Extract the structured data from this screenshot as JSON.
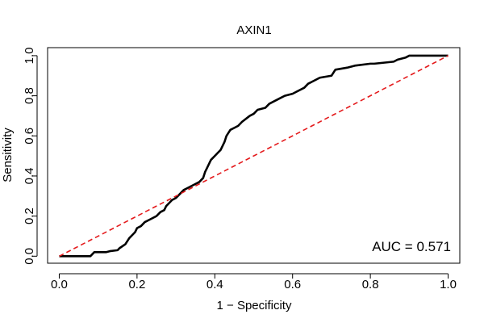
{
  "chart_data": {
    "type": "line",
    "title": "AXIN1",
    "xlabel": "1 − Specificity",
    "ylabel": "Sensitivity",
    "xlim": [
      -0.03,
      1.03
    ],
    "ylim": [
      -0.035,
      1.04
    ],
    "x_ticks": [
      0.0,
      0.2,
      0.4,
      0.6,
      0.8,
      1.0
    ],
    "x_tick_labels": [
      "0.0",
      "0.2",
      "0.4",
      "0.6",
      "0.8",
      "1.0"
    ],
    "y_ticks": [
      0.0,
      0.2,
      0.4,
      0.6,
      0.8,
      1.0
    ],
    "y_tick_labels": [
      "0.0",
      "0.2",
      "0.4",
      "0.6",
      "0.8",
      "1.0"
    ],
    "grid": false,
    "annotation": "AUC = 0.571",
    "series": [
      {
        "kind": "roc-curve",
        "color": "#000000",
        "x": [
          0.0,
          0.08,
          0.09,
          0.12,
          0.13,
          0.15,
          0.155,
          0.17,
          0.18,
          0.19,
          0.195,
          0.2,
          0.21,
          0.22,
          0.23,
          0.24,
          0.25,
          0.26,
          0.27,
          0.275,
          0.28,
          0.29,
          0.3,
          0.31,
          0.32,
          0.33,
          0.34,
          0.35,
          0.36,
          0.37,
          0.375,
          0.38,
          0.385,
          0.39,
          0.4,
          0.405,
          0.41,
          0.415,
          0.42,
          0.425,
          0.43,
          0.44,
          0.45,
          0.46,
          0.47,
          0.49,
          0.5,
          0.51,
          0.53,
          0.54,
          0.56,
          0.57,
          0.58,
          0.6,
          0.61,
          0.63,
          0.64,
          0.65,
          0.66,
          0.67,
          0.7,
          0.71,
          0.74,
          0.76,
          0.8,
          0.81,
          0.86,
          0.87,
          0.89,
          0.9,
          1.0
        ],
        "y": [
          0.0,
          0.0,
          0.02,
          0.02,
          0.025,
          0.03,
          0.04,
          0.06,
          0.09,
          0.11,
          0.12,
          0.14,
          0.15,
          0.17,
          0.18,
          0.19,
          0.2,
          0.22,
          0.23,
          0.25,
          0.26,
          0.28,
          0.29,
          0.31,
          0.33,
          0.34,
          0.35,
          0.36,
          0.37,
          0.39,
          0.42,
          0.44,
          0.46,
          0.48,
          0.5,
          0.51,
          0.52,
          0.53,
          0.55,
          0.57,
          0.6,
          0.63,
          0.64,
          0.65,
          0.67,
          0.7,
          0.71,
          0.73,
          0.74,
          0.76,
          0.78,
          0.79,
          0.8,
          0.81,
          0.82,
          0.84,
          0.86,
          0.87,
          0.88,
          0.89,
          0.9,
          0.93,
          0.94,
          0.95,
          0.96,
          0.96,
          0.97,
          0.98,
          0.99,
          1.0,
          1.0
        ]
      },
      {
        "kind": "reference-line",
        "color": "#e41a1c",
        "style": "dashed",
        "x": [
          0.0,
          1.0
        ],
        "y": [
          0.0,
          1.0
        ]
      }
    ]
  }
}
